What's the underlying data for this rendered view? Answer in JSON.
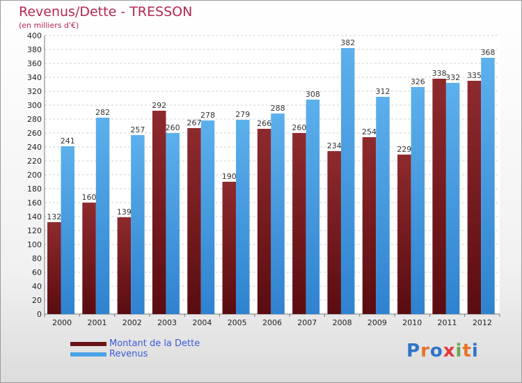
{
  "title": "Revenus/Dette - TRESSON",
  "subtitle": "(en milliers d'€)",
  "logo": {
    "text": "Proxiti",
    "colors": [
      "#2f74c8",
      "#e8742a",
      "#2f74c8",
      "#e03a3a",
      "#6aa84f",
      "#e8742a",
      "#2f74c8"
    ]
  },
  "chart_data": {
    "type": "bar",
    "title": "Revenus/Dette - TRESSON",
    "subtitle": "(en milliers d'€)",
    "categories": [
      "2000",
      "2001",
      "2002",
      "2003",
      "2004",
      "2005",
      "2006",
      "2007",
      "2008",
      "2009",
      "2010",
      "2011",
      "2012"
    ],
    "series": [
      {
        "name": "Montant de la Dette",
        "color": "#6b1418",
        "values": [
          132,
          160,
          139,
          292,
          267,
          190,
          266,
          260,
          234,
          254,
          229,
          338,
          335
        ]
      },
      {
        "name": "Revenus",
        "color": "#4aa3e6",
        "values": [
          241,
          282,
          257,
          260,
          278,
          279,
          288,
          308,
          382,
          312,
          326,
          332,
          368
        ]
      }
    ],
    "ylim": [
      0,
      400
    ],
    "ytick_step": 20,
    "grid": true,
    "legend_position": "bottom-left"
  }
}
